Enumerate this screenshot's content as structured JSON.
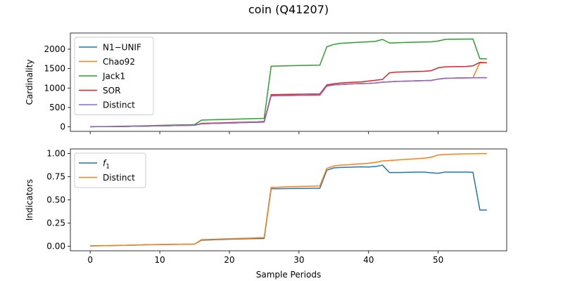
{
  "figure": {
    "title": "coin (Q41207)"
  },
  "chart_data": [
    {
      "type": "line",
      "ylabel": "Cardinality",
      "xlabel": "",
      "xlim": [
        -2.85,
        59.85
      ],
      "ylim": [
        -115,
        2415
      ],
      "xticks": [
        0,
        10,
        20,
        30,
        40,
        50
      ],
      "yticks": [
        0,
        500,
        1000,
        1500,
        2000
      ],
      "ytick_labels": [
        "0",
        "500",
        "1000",
        "1500",
        "2000"
      ],
      "legend": "upper left",
      "grid": false,
      "x": [
        0,
        1,
        2,
        3,
        4,
        5,
        6,
        7,
        8,
        9,
        10,
        11,
        12,
        13,
        14,
        15,
        16,
        17,
        18,
        19,
        20,
        21,
        22,
        23,
        24,
        25,
        26,
        27,
        28,
        29,
        30,
        31,
        32,
        33,
        34,
        35,
        36,
        37,
        38,
        39,
        40,
        41,
        42,
        43,
        44,
        45,
        46,
        47,
        48,
        49,
        50,
        51,
        52,
        53,
        54,
        55,
        56,
        57
      ],
      "series": [
        {
          "name": "N1−UNIF",
          "color": "#1f77b4",
          "values": [
            5,
            6,
            7,
            8,
            10,
            12,
            15,
            18,
            21,
            24,
            27,
            30,
            34,
            38,
            40,
            42,
            80,
            85,
            90,
            95,
            100,
            105,
            110,
            115,
            120,
            125,
            800,
            802,
            805,
            808,
            810,
            812,
            815,
            818,
            1050,
            1080,
            1090,
            1100,
            1110,
            1115,
            1120,
            1130,
            1150,
            1160,
            1170,
            1175,
            1180,
            1185,
            1190,
            1195,
            1230,
            1250,
            1255,
            1258,
            1260,
            1262,
            1265,
            1265
          ]
        },
        {
          "name": "Chao92",
          "color": "#ff7f0e",
          "values": [
            5,
            6,
            7,
            8,
            10,
            12,
            15,
            18,
            21,
            24,
            27,
            30,
            34,
            38,
            40,
            42,
            80,
            85,
            90,
            95,
            100,
            105,
            110,
            115,
            120,
            125,
            800,
            802,
            805,
            808,
            810,
            812,
            815,
            818,
            1050,
            1080,
            1090,
            1100,
            1110,
            1115,
            1120,
            1130,
            1150,
            1160,
            1170,
            1175,
            1180,
            1185,
            1190,
            1195,
            1230,
            1250,
            1255,
            1258,
            1260,
            1262,
            1650,
            1650
          ]
        },
        {
          "name": "Jack1",
          "color": "#2ca02c",
          "values": [
            8,
            9,
            10,
            12,
            15,
            18,
            22,
            26,
            30,
            35,
            38,
            42,
            48,
            52,
            55,
            58,
            175,
            180,
            185,
            190,
            195,
            200,
            205,
            210,
            215,
            220,
            1560,
            1565,
            1570,
            1575,
            1580,
            1582,
            1585,
            1588,
            2060,
            2120,
            2150,
            2160,
            2170,
            2180,
            2190,
            2200,
            2250,
            2160,
            2165,
            2170,
            2175,
            2180,
            2185,
            2190,
            2210,
            2250,
            2255,
            2258,
            2260,
            2262,
            1750,
            1750
          ]
        },
        {
          "name": "SOR",
          "color": "#d62728",
          "values": [
            5,
            6,
            7,
            8,
            10,
            12,
            15,
            18,
            21,
            24,
            27,
            30,
            34,
            38,
            40,
            42,
            90,
            95,
            100,
            105,
            110,
            115,
            120,
            125,
            130,
            140,
            830,
            832,
            835,
            838,
            840,
            842,
            845,
            848,
            1080,
            1110,
            1130,
            1140,
            1150,
            1160,
            1180,
            1200,
            1220,
            1390,
            1410,
            1415,
            1420,
            1425,
            1430,
            1445,
            1520,
            1545,
            1550,
            1552,
            1555,
            1570,
            1660,
            1650
          ]
        },
        {
          "name": "Distinct",
          "color": "#9467bd",
          "values": [
            5,
            6,
            7,
            8,
            10,
            12,
            15,
            18,
            21,
            24,
            27,
            30,
            34,
            38,
            40,
            42,
            80,
            85,
            90,
            95,
            100,
            105,
            110,
            115,
            120,
            125,
            800,
            802,
            805,
            808,
            810,
            812,
            815,
            818,
            1050,
            1080,
            1090,
            1100,
            1110,
            1115,
            1120,
            1130,
            1150,
            1160,
            1170,
            1175,
            1180,
            1185,
            1190,
            1195,
            1230,
            1250,
            1255,
            1258,
            1260,
            1262,
            1265,
            1265
          ]
        }
      ]
    },
    {
      "type": "line",
      "ylabel": "Indicators",
      "xlabel": "Sample Periods",
      "xlim": [
        -2.85,
        59.85
      ],
      "ylim": [
        -0.05,
        1.05
      ],
      "xticks": [
        0,
        10,
        20,
        30,
        40,
        50
      ],
      "yticks": [
        0,
        0.25,
        0.5,
        0.75,
        1.0
      ],
      "ytick_labels": [
        "0.00",
        "0.25",
        "0.50",
        "0.75",
        "1.00"
      ],
      "legend": "upper left",
      "grid": false,
      "x": [
        0,
        1,
        2,
        3,
        4,
        5,
        6,
        7,
        8,
        9,
        10,
        11,
        12,
        13,
        14,
        15,
        16,
        17,
        18,
        19,
        20,
        21,
        22,
        23,
        24,
        25,
        26,
        27,
        28,
        29,
        30,
        31,
        32,
        33,
        34,
        35,
        36,
        37,
        38,
        39,
        40,
        41,
        42,
        43,
        44,
        45,
        46,
        47,
        48,
        49,
        50,
        51,
        52,
        53,
        54,
        55,
        56,
        57
      ],
      "series": [
        {
          "name": "f1",
          "legend_main": "f",
          "legend_sub": "1",
          "color": "#1f77b4",
          "values": [
            0.003,
            0.004,
            0.005,
            0.006,
            0.008,
            0.009,
            0.011,
            0.013,
            0.015,
            0.016,
            0.017,
            0.018,
            0.019,
            0.02,
            0.021,
            0.022,
            0.065,
            0.067,
            0.07,
            0.072,
            0.075,
            0.077,
            0.079,
            0.081,
            0.082,
            0.083,
            0.62,
            0.62,
            0.621,
            0.622,
            0.623,
            0.624,
            0.625,
            0.625,
            0.82,
            0.845,
            0.85,
            0.852,
            0.855,
            0.857,
            0.855,
            0.86,
            0.875,
            0.795,
            0.795,
            0.796,
            0.798,
            0.8,
            0.8,
            0.792,
            0.787,
            0.8,
            0.8,
            0.8,
            0.8,
            0.798,
            0.39,
            0.39
          ]
        },
        {
          "name": "Distinct",
          "color": "#ff7f0e",
          "values": [
            0.003,
            0.004,
            0.005,
            0.006,
            0.008,
            0.009,
            0.011,
            0.013,
            0.015,
            0.016,
            0.017,
            0.018,
            0.019,
            0.02,
            0.021,
            0.022,
            0.07,
            0.072,
            0.075,
            0.078,
            0.08,
            0.082,
            0.085,
            0.087,
            0.09,
            0.092,
            0.635,
            0.637,
            0.64,
            0.642,
            0.644,
            0.646,
            0.648,
            0.65,
            0.84,
            0.865,
            0.875,
            0.878,
            0.885,
            0.89,
            0.895,
            0.905,
            0.92,
            0.925,
            0.93,
            0.935,
            0.94,
            0.945,
            0.95,
            0.96,
            0.985,
            0.99,
            0.992,
            0.995,
            0.997,
            0.998,
            1.0,
            1.0
          ]
        }
      ]
    }
  ]
}
